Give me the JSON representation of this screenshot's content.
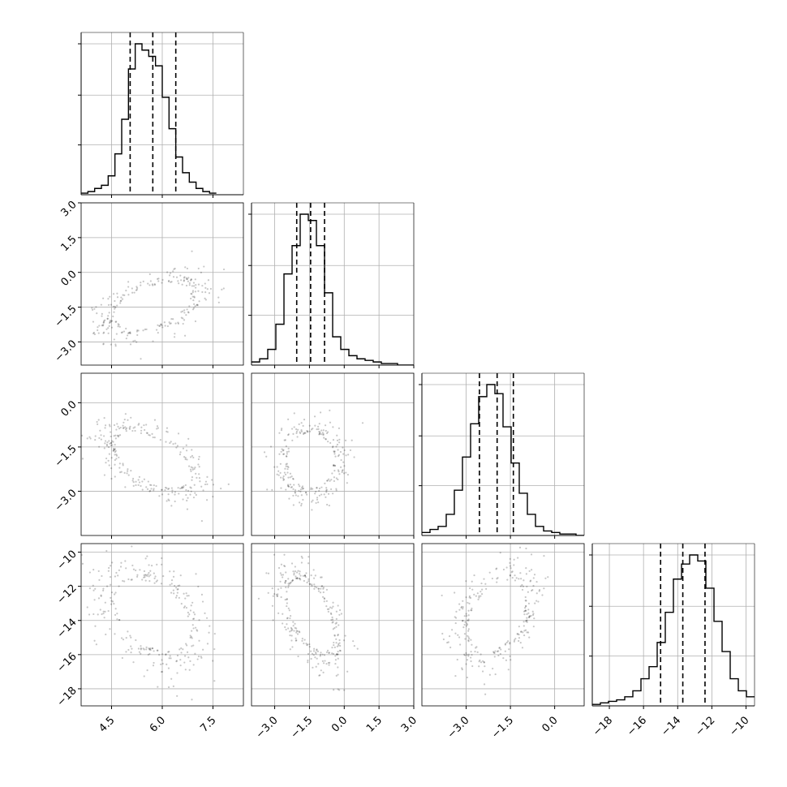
{
  "chart_data": {
    "type": "corner",
    "title": "",
    "n_params": 4,
    "grid": true,
    "axes": [
      {
        "range": [
          3.6,
          8.4
        ],
        "ticks": [
          4.5,
          6.0,
          7.5
        ],
        "tick_labels": [
          "4.5",
          "6.0",
          "7.5"
        ]
      },
      {
        "range": [
          -4.0,
          3.0
        ],
        "ticks": [
          -3.0,
          -1.5,
          0.0,
          1.5,
          3.0
        ],
        "tick_labels": [
          "−3.0",
          "−1.5",
          "0.0",
          "1.5",
          "3.0"
        ]
      },
      {
        "range": [
          -4.5,
          1.0
        ],
        "ticks": [
          -3.0,
          -1.5,
          0.0
        ],
        "tick_labels": [
          "−3.0",
          "−1.5",
          "0.0"
        ]
      },
      {
        "range": [
          -19.0,
          -9.5
        ],
        "ticks": [
          -18,
          -16,
          -14,
          -12,
          -10
        ],
        "tick_labels": [
          "−18",
          "−16",
          "−14",
          "−12",
          "−10"
        ]
      }
    ],
    "quantiles": [
      {
        "q16": 5.05,
        "q50": 5.72,
        "q84": 6.4
      },
      {
        "q16": -2.05,
        "q50": -1.45,
        "q84": -0.85
      },
      {
        "q16": -2.55,
        "q50": -1.95,
        "q84": -1.4
      },
      {
        "q16": -15.0,
        "q50": -13.7,
        "q84": -12.4
      }
    ],
    "histograms": [
      {
        "bin_start": 3.6,
        "bin_width": 0.2,
        "counts": [
          1,
          2,
          4,
          6,
          12,
          26,
          48,
          80,
          96,
          92,
          88,
          82,
          62,
          42,
          24,
          14,
          8,
          4,
          2,
          1
        ]
      },
      {
        "bin_start": -4.0,
        "bin_width": 0.35,
        "counts": [
          2,
          4,
          10,
          26,
          58,
          76,
          96,
          92,
          76,
          46,
          18,
          10,
          6,
          4,
          3,
          2,
          1,
          1,
          0,
          0
        ]
      },
      {
        "bin_start": -4.5,
        "bin_width": 0.275,
        "counts": [
          2,
          4,
          6,
          14,
          30,
          52,
          74,
          92,
          100,
          94,
          72,
          48,
          28,
          14,
          6,
          3,
          2,
          1,
          1,
          0
        ]
      },
      {
        "bin_start": -19.0,
        "bin_width": 0.475,
        "counts": [
          1,
          2,
          3,
          4,
          6,
          10,
          18,
          26,
          42,
          62,
          84,
          94,
          100,
          96,
          78,
          56,
          36,
          18,
          10,
          6
        ]
      }
    ],
    "posterior": {
      "means": [
        5.72,
        -1.45,
        -1.95,
        -13.7
      ],
      "sds": [
        0.7,
        0.62,
        0.58,
        1.3
      ],
      "correlations": [
        [
          0,
          1,
          0.45
        ],
        [
          0,
          2,
          -0.55
        ],
        [
          0,
          3,
          -0.4
        ],
        [
          1,
          2,
          0.0
        ],
        [
          1,
          3,
          -0.55
        ],
        [
          2,
          3,
          0.35
        ]
      ]
    }
  }
}
